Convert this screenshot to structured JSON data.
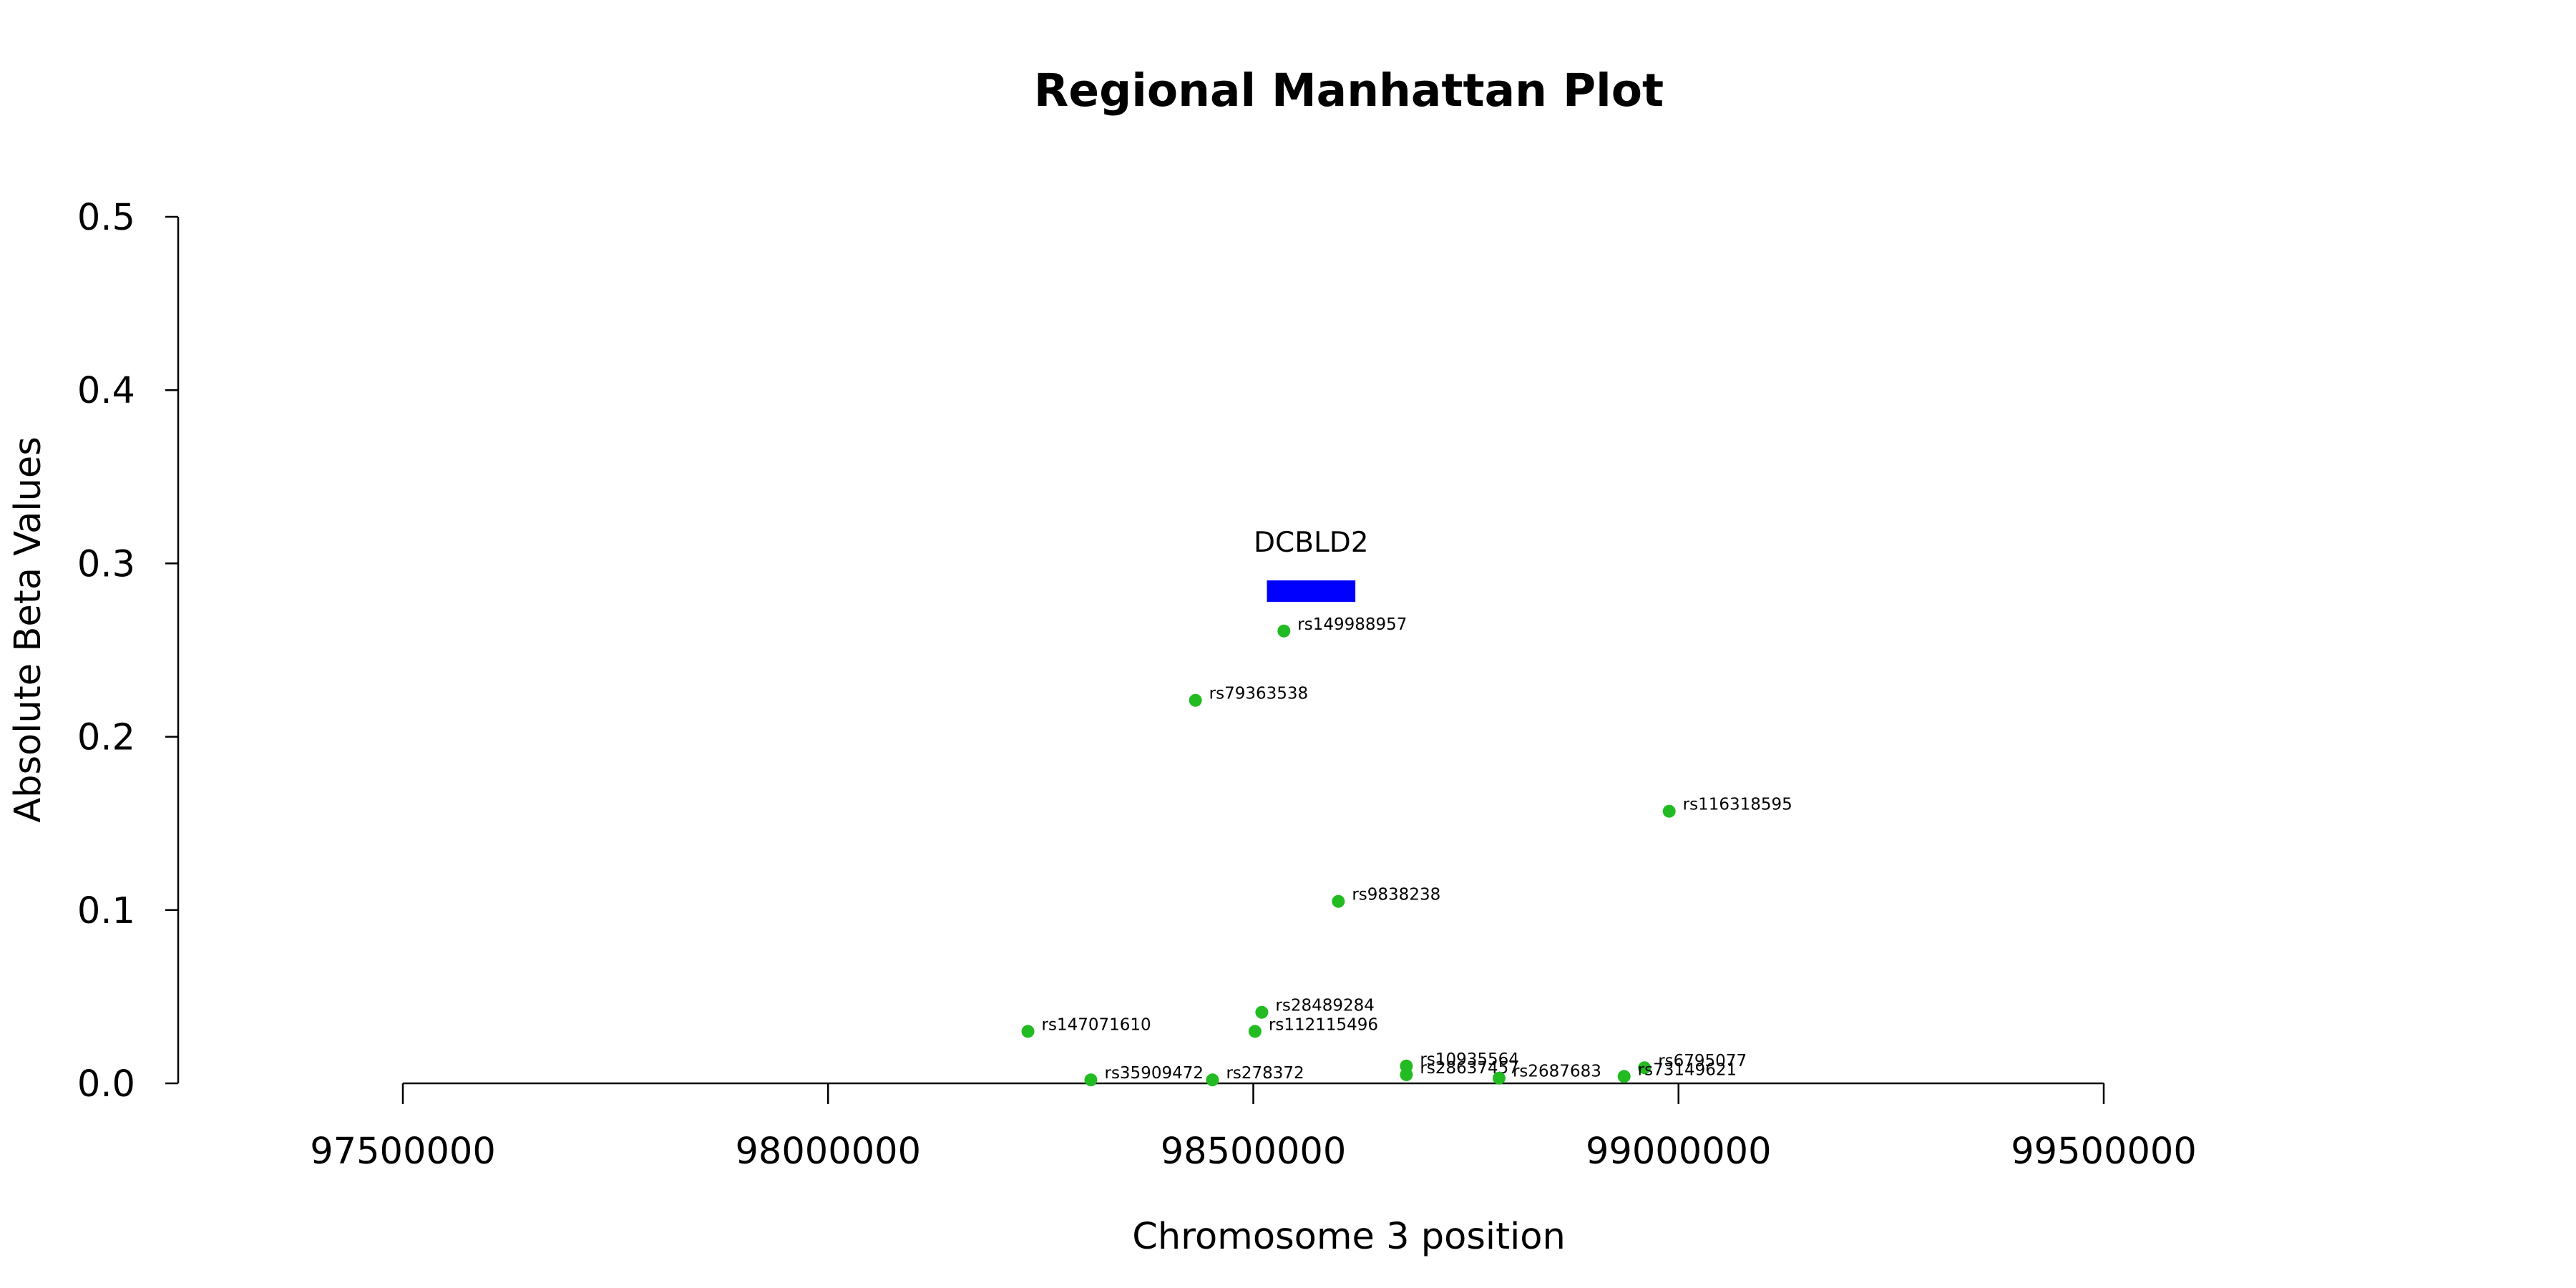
{
  "chart_data": {
    "type": "scatter",
    "title": "Regional Manhattan Plot",
    "xlabel": "Chromosome 3 position",
    "ylabel": "Absolute Beta Values",
    "xlim": [
      97500000,
      99500000
    ],
    "ylim": [
      0,
      0.5
    ],
    "xticks": [
      97500000,
      98000000,
      98500000,
      99000000,
      99500000
    ],
    "xtick_labels": [
      "97500000",
      "98000000",
      "98500000",
      "99000000",
      "99500000"
    ],
    "yticks": [
      0,
      0.1,
      0.2,
      0.3,
      0.4,
      0.5
    ],
    "ytick_labels": [
      "0.0",
      "0.1",
      "0.2",
      "0.3",
      "0.4",
      "0.5"
    ],
    "grid": false,
    "point_color": "#22bb22",
    "gene": {
      "name": "DCBLD2",
      "start": 98516000,
      "end": 98620000,
      "color": "#0000ff",
      "y": 0.284
    },
    "points": [
      {
        "label": "rs149988957",
        "x": 98536000,
        "y": 0.261
      },
      {
        "label": "rs79363538",
        "x": 98432000,
        "y": 0.221
      },
      {
        "label": "rs116318595",
        "x": 98989000,
        "y": 0.157
      },
      {
        "label": "rs9838238",
        "x": 98600000,
        "y": 0.105
      },
      {
        "label": "rs28489284",
        "x": 98510000,
        "y": 0.041
      },
      {
        "label": "rs147071610",
        "x": 98235000,
        "y": 0.03
      },
      {
        "label": "rs112115496",
        "x": 98502000,
        "y": 0.03
      },
      {
        "label": "rs10935564",
        "x": 98680000,
        "y": 0.01
      },
      {
        "label": "rs6795077",
        "x": 98960000,
        "y": 0.009
      },
      {
        "label": "rs28637457",
        "x": 98680000,
        "y": 0.005
      },
      {
        "label": "rs73149621",
        "x": 98936000,
        "y": 0.004
      },
      {
        "label": "rs2687683",
        "x": 98789000,
        "y": 0.003
      },
      {
        "label": "rs35909472",
        "x": 98309000,
        "y": 0.002
      },
      {
        "label": "rs278372",
        "x": 98452000,
        "y": 0.002
      }
    ]
  }
}
